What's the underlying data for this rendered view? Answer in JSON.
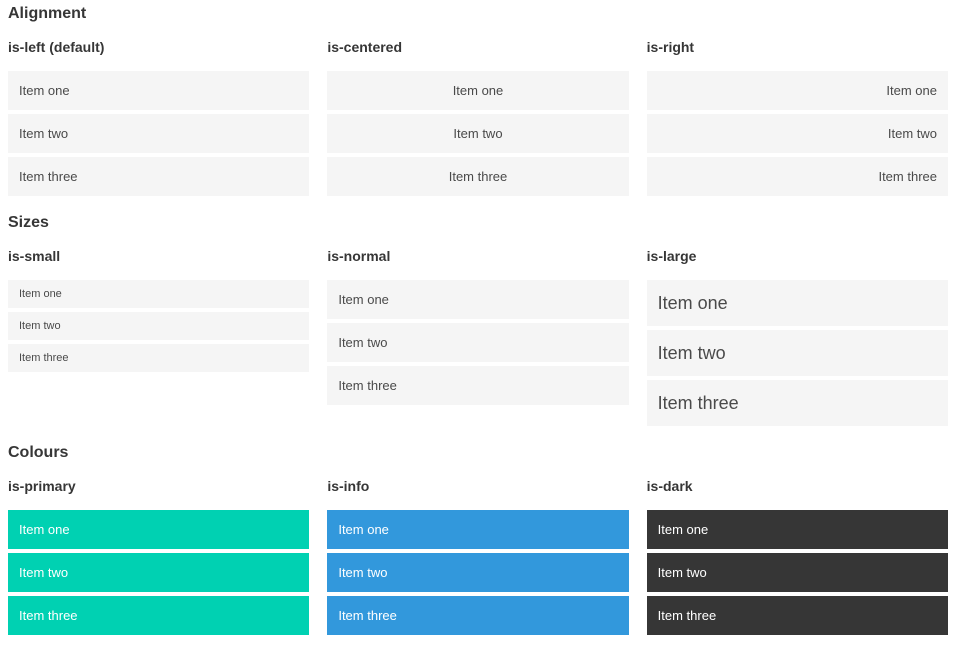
{
  "sections": [
    {
      "title": "Alignment",
      "columns": [
        {
          "label": "is-left (default)",
          "items": [
            "Item one",
            "Item two",
            "Item three"
          ]
        },
        {
          "label": "is-centered",
          "items": [
            "Item one",
            "Item two",
            "Item three"
          ]
        },
        {
          "label": "is-right",
          "items": [
            "Item one",
            "Item two",
            "Item three"
          ]
        }
      ]
    },
    {
      "title": "Sizes",
      "columns": [
        {
          "label": "is-small",
          "items": [
            "Item one",
            "Item two",
            "Item three"
          ]
        },
        {
          "label": "is-normal",
          "items": [
            "Item one",
            "Item two",
            "Item three"
          ]
        },
        {
          "label": "is-large",
          "items": [
            "Item one",
            "Item two",
            "Item three"
          ]
        }
      ]
    },
    {
      "title": "Colours",
      "columns": [
        {
          "label": "is-primary",
          "items": [
            "Item one",
            "Item two",
            "Item three"
          ]
        },
        {
          "label": "is-info",
          "items": [
            "Item one",
            "Item two",
            "Item three"
          ]
        },
        {
          "label": "is-dark",
          "items": [
            "Item one",
            "Item two",
            "Item three"
          ]
        }
      ]
    }
  ],
  "colors": {
    "primary": "#00d1b2",
    "info": "#3298dc",
    "dark": "#363636",
    "item_background": "#f5f5f5",
    "item_text": "#4a4a4a",
    "heading_text": "#363636"
  }
}
